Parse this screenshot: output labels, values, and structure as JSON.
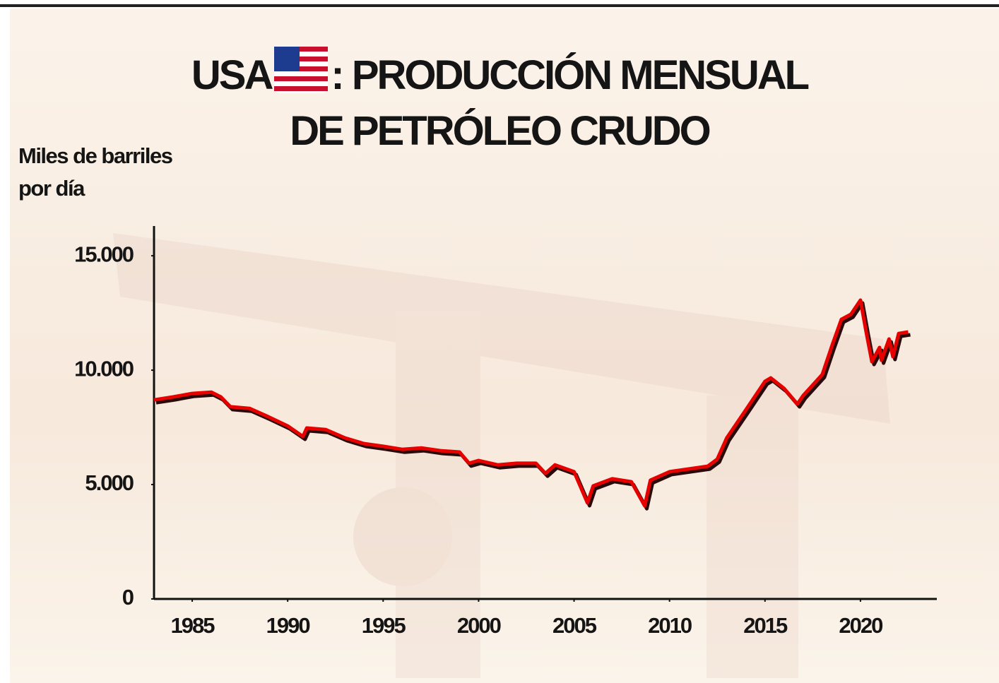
{
  "title_lead": "USA",
  "chart_data": {
    "type": "line",
    "title_lines": [
      ": PRODUCCIÓN MENSUAL",
      "DE PETRÓLEO CRUDO"
    ],
    "y_label": "Miles de barriles por día",
    "color": "#e60000",
    "x": [
      1983,
      1984,
      1985,
      1986,
      1986.5,
      1987,
      1988,
      1989,
      1990,
      1990.8,
      1991,
      1992,
      1993,
      1994,
      1995,
      1996,
      1997,
      1998,
      1999,
      1999.5,
      2000,
      2001,
      2002,
      2003,
      2003.5,
      2004,
      2005,
      2005.7,
      2006,
      2007,
      2008,
      2008.7,
      2009,
      2010,
      2011,
      2012,
      2012.5,
      2013,
      2014,
      2015,
      2015.3,
      2016,
      2016.7,
      2017,
      2018,
      2018.5,
      2019,
      2019.5,
      2020,
      2020.3,
      2020.6,
      2021,
      2021.1,
      2021.5,
      2021.7,
      2022,
      2022.5
    ],
    "values": [
      8700,
      8830,
      8980,
      9040,
      8830,
      8400,
      8330,
      7960,
      7560,
      7100,
      7470,
      7400,
      7040,
      6790,
      6670,
      6540,
      6600,
      6480,
      6420,
      5930,
      6050,
      5860,
      5930,
      5930,
      5490,
      5860,
      5560,
      4200,
      4940,
      5250,
      5120,
      4070,
      5190,
      5560,
      5680,
      5800,
      6110,
      7040,
      8270,
      9510,
      9660,
      9200,
      8520,
      8890,
      9810,
      11050,
      12220,
      12440,
      13060,
      11670,
      10370,
      10990,
      10430,
      11360,
      10590,
      11600,
      11670
    ],
    "xlim": [
      1983,
      2024
    ],
    "ylim": [
      0,
      16300
    ],
    "xticks": [
      1985,
      1990,
      1995,
      2000,
      2005,
      2010,
      2015,
      2020
    ],
    "yticks": [
      0,
      {
        "value": 5000,
        "label": "5.000"
      },
      {
        "value": 10000,
        "label": "10.000"
      },
      {
        "value": 15000,
        "label": "15.000"
      }
    ],
    "grid": false
  }
}
